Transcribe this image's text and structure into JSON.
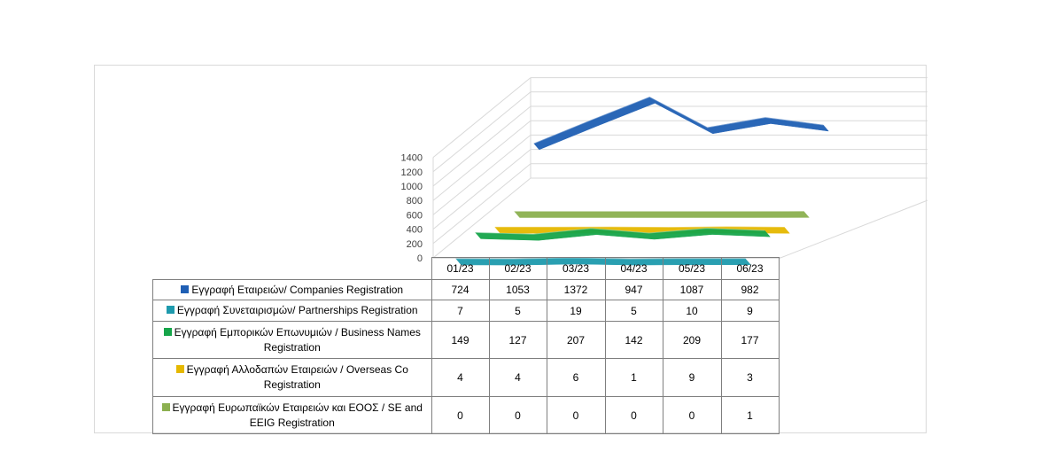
{
  "chart_data": {
    "type": "line",
    "categories": [
      "01/23",
      "02/23",
      "03/23",
      "04/23",
      "05/23",
      "06/23"
    ],
    "yticks": [
      "0",
      "200",
      "400",
      "600",
      "800",
      "1000",
      "1200",
      "1400"
    ],
    "ylim": [
      0,
      1400
    ],
    "series": [
      {
        "name": "Εγγραφή  Εταιρειών/ Companies Registration",
        "color": "#1f5fb4",
        "values": [
          724,
          1053,
          1372,
          947,
          1087,
          982
        ]
      },
      {
        "name": "Εγγραφή  Συνεταιρισμών/ Partnerships Registration",
        "color": "#1e9aad",
        "values": [
          7,
          5,
          19,
          5,
          10,
          9
        ]
      },
      {
        "name": "Εγγραφή  Εμπορικών Επωνυμιών / Business Names Registration",
        "color": "#16a54a",
        "values": [
          149,
          127,
          207,
          142,
          209,
          177
        ]
      },
      {
        "name": "Εγγραφή  Αλλοδαπών  Εταιρειών / Overseas Co Registration",
        "color": "#e5b800",
        "values": [
          4,
          4,
          6,
          1,
          9,
          3
        ]
      },
      {
        "name": "Εγγραφή  Ευρωπαϊκών Εταιρειών και ΕΟΟΣ / SE and EEIG Registration",
        "color": "#8cb050",
        "values": [
          0,
          0,
          0,
          0,
          0,
          1
        ]
      }
    ]
  }
}
